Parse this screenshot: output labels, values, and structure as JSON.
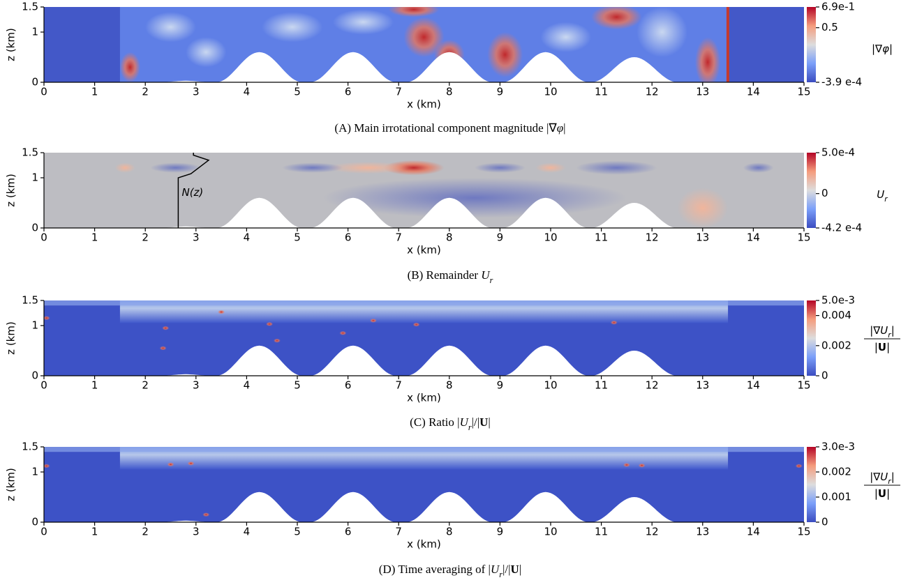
{
  "panels": [
    {
      "xlabel": "x (km)",
      "ylabel": "z (km)",
      "xlim": [
        0,
        15
      ],
      "ylim": [
        0,
        1.5
      ],
      "xticks": [
        0,
        1,
        2,
        3,
        4,
        5,
        6,
        7,
        8,
        9,
        10,
        11,
        12,
        13,
        14,
        15
      ],
      "yticks": [
        0,
        1,
        1.5
      ],
      "colorbar": {
        "lim": [
          -0.00039,
          0.69
        ],
        "ticks": [
          {
            "value": 0.69,
            "label": "6.9e-1"
          },
          0.5,
          {
            "value": -0.00039,
            "label": "-3.9 e-4"
          }
        ],
        "label": [
          {
            "text": "|∇"
          },
          {
            "text": "φ",
            "style": "italic"
          },
          {
            "text": "|"
          }
        ]
      },
      "caption": [
        {
          "text": "(A) Main irrotational component magnitude |∇"
        },
        {
          "text": "φ",
          "style": "italic"
        },
        {
          "text": "|"
        }
      ]
    },
    {
      "xlabel": "x (km)",
      "ylabel": "z (km)",
      "xlim": [
        0,
        15
      ],
      "ylim": [
        0,
        1.5
      ],
      "xticks": [
        0,
        1,
        2,
        3,
        4,
        5,
        6,
        7,
        8,
        9,
        10,
        11,
        12,
        13,
        14,
        15
      ],
      "yticks": [
        0,
        1,
        1.5
      ],
      "annotation": "N(z)",
      "colorbar": {
        "lim": [
          -0.00042,
          0.0005
        ],
        "ticks": [
          {
            "value": 0.0005,
            "label": "5.0e-4"
          },
          0,
          {
            "value": -0.00042,
            "label": "-4.2 e-4"
          }
        ],
        "label": [
          {
            "text": "U",
            "style": "italic"
          },
          {
            "text": "r",
            "style": "sub"
          }
        ]
      },
      "caption": [
        {
          "text": "(B) Remainder "
        },
        {
          "text": "U",
          "style": "italic"
        },
        {
          "text": "r",
          "style": "sub"
        }
      ]
    },
    {
      "xlabel": "x (km)",
      "ylabel": "z (km)",
      "xlim": [
        0,
        15
      ],
      "ylim": [
        0,
        1.5
      ],
      "xticks": [
        0,
        1,
        2,
        3,
        4,
        5,
        6,
        7,
        8,
        9,
        10,
        11,
        12,
        13,
        14,
        15
      ],
      "yticks": [
        0,
        1,
        1.5
      ],
      "colorbar": {
        "lim": [
          0,
          0.005
        ],
        "ticks": [
          {
            "value": 0.005,
            "label": "5.0e-3"
          },
          0.004,
          0.002,
          0
        ],
        "numerator": [
          {
            "text": "|∇"
          },
          {
            "text": "U",
            "style": "italic"
          },
          {
            "text": "r",
            "style": "sub"
          },
          {
            "text": "|"
          }
        ],
        "denominator": [
          {
            "text": "|"
          },
          {
            "text": "U",
            "style": "bold"
          },
          {
            "text": "|"
          }
        ]
      },
      "caption": [
        {
          "text": "(C) Ratio |"
        },
        {
          "text": "U",
          "style": "italic"
        },
        {
          "text": "r",
          "style": "sub"
        },
        {
          "text": "|/|"
        },
        {
          "text": "U",
          "style": "bold"
        },
        {
          "text": "|"
        }
      ]
    },
    {
      "xlabel": "x (km)",
      "ylabel": "z (km)",
      "xlim": [
        0,
        15
      ],
      "ylim": [
        0,
        1.5
      ],
      "xticks": [
        0,
        1,
        2,
        3,
        4,
        5,
        6,
        7,
        8,
        9,
        10,
        11,
        12,
        13,
        14,
        15
      ],
      "yticks": [
        0,
        1,
        1.5
      ],
      "colorbar": {
        "lim": [
          0,
          0.003
        ],
        "ticks": [
          {
            "value": 0.003,
            "label": "3.0e-3"
          },
          0.002,
          0.001,
          0
        ],
        "numerator": [
          {
            "text": "|∇"
          },
          {
            "text": "U",
            "style": "italic"
          },
          {
            "text": "r",
            "style": "sub"
          },
          {
            "text": "|"
          }
        ],
        "denominator": [
          {
            "text": "|"
          },
          {
            "text": "U",
            "style": "bold"
          },
          {
            "text": "|"
          }
        ]
      },
      "caption": [
        {
          "text": "(D) Time averaging of |"
        },
        {
          "text": "U",
          "style": "italic"
        },
        {
          "text": "r",
          "style": "sub"
        },
        {
          "text": "|/|"
        },
        {
          "text": "U",
          "style": "bold"
        },
        {
          "text": "|"
        }
      ]
    }
  ]
}
